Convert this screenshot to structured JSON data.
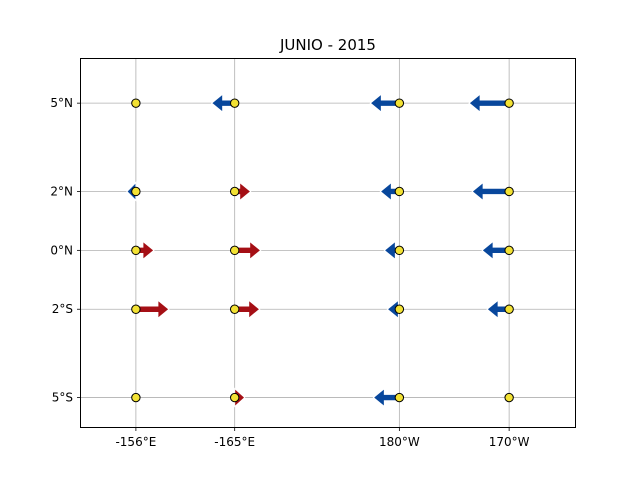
{
  "chart_data": {
    "type": "vector-field",
    "title": "JUNIO - 2015",
    "x_ticks": [
      {
        "lon": 156,
        "label": "-156°E"
      },
      {
        "lon": 165,
        "label": "-165°E"
      },
      {
        "lon": 180,
        "label": "180°W"
      },
      {
        "lon": 190,
        "label": "170°W"
      }
    ],
    "y_ticks": [
      {
        "lat": 5,
        "label": "5°N"
      },
      {
        "lat": 2,
        "label": "2°N"
      },
      {
        "lat": 0,
        "label": "0°N"
      },
      {
        "lat": -2,
        "label": "2°S"
      },
      {
        "lat": -5,
        "label": "5°S"
      }
    ],
    "xlim": [
      151,
      196
    ],
    "ylim": [
      -6,
      6.5
    ],
    "grid": true,
    "colors": {
      "eastward": "#a50f15",
      "westward": "#08479c",
      "station_fill": "#f3e234",
      "station_edge": "#000000",
      "grid": "#b0b0b0"
    },
    "vectors": [
      {
        "lon": 156,
        "lat": 5,
        "u": 0
      },
      {
        "lon": 165,
        "lat": 5,
        "u": -2.3
      },
      {
        "lon": 180,
        "lat": 5,
        "u": -2.9
      },
      {
        "lon": 190,
        "lat": 5,
        "u": -4.0
      },
      {
        "lon": 156,
        "lat": 2,
        "u": -0.9
      },
      {
        "lon": 165,
        "lat": 2,
        "u": 1.6
      },
      {
        "lon": 180,
        "lat": 2,
        "u": -1.9
      },
      {
        "lon": 190,
        "lat": 2,
        "u": -3.7
      },
      {
        "lon": 156,
        "lat": 0,
        "u": 1.8
      },
      {
        "lon": 165,
        "lat": 0,
        "u": 2.6
      },
      {
        "lon": 180,
        "lat": 0,
        "u": -1.5
      },
      {
        "lon": 190,
        "lat": 0,
        "u": -2.7
      },
      {
        "lon": 156,
        "lat": -2,
        "u": 3.3
      },
      {
        "lon": 165,
        "lat": -2,
        "u": 2.5
      },
      {
        "lon": 180,
        "lat": -2,
        "u": -1.2
      },
      {
        "lon": 190,
        "lat": -2,
        "u": -2.2
      },
      {
        "lon": 156,
        "lat": -5,
        "u": 0
      },
      {
        "lon": 165,
        "lat": -5,
        "u": 1.0
      },
      {
        "lon": 180,
        "lat": -5,
        "u": -2.6
      },
      {
        "lon": 190,
        "lat": -5,
        "u": 0
      }
    ]
  }
}
